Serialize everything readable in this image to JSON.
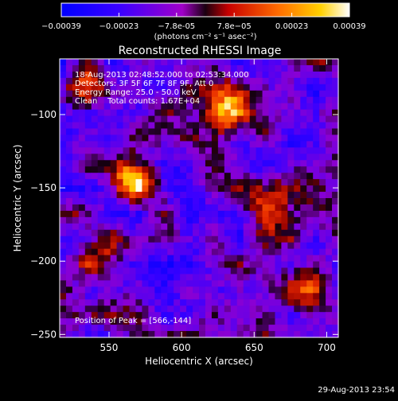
{
  "chart_data": {
    "type": "heatmap",
    "title": "Reconstructed RHESSI Image",
    "xlabel": "Heliocentric X (arcsec)",
    "ylabel": "Heliocentric Y (arcsec)",
    "xlim": [
      516,
      708
    ],
    "ylim": [
      -252,
      -62
    ],
    "x_ticks": [
      550,
      600,
      650,
      700
    ],
    "y_ticks": [
      -100,
      -150,
      -200,
      -250
    ],
    "colorbar": {
      "range": [
        -0.00039,
        0.00039
      ],
      "ticks": [
        "-0.00039",
        "-0.00023",
        "-7.8e-05",
        "7.8e-05",
        "0.00023",
        "0.00039"
      ],
      "unit_label": "(photons cm⁻² s⁻¹ asec⁻²)"
    },
    "annotations": [
      "18-Aug-2013 02:48:52.000 to 02:53:34.000",
      "Detectors: 3F 5F 6F 7F 8F 9F, Att 0",
      "Energy Range: 25.0 - 50.0 keV",
      "Clean    Total counts: 1.67E+04"
    ],
    "peak_label": "Position of Peak = [566,-144]",
    "peaks": [
      {
        "x": 566,
        "y": -144,
        "value": 0.00039
      },
      {
        "x": 633,
        "y": -96,
        "value": 0.00034
      },
      {
        "x": 680,
        "y": -220,
        "value": 0.00026
      },
      {
        "x": 530,
        "y": -85,
        "value": 0.00022
      },
      {
        "x": 660,
        "y": -165,
        "value": 0.0002
      },
      {
        "x": 545,
        "y": -195,
        "value": 0.00016
      }
    ],
    "timestamp": "29-Aug-2013 23:54"
  }
}
